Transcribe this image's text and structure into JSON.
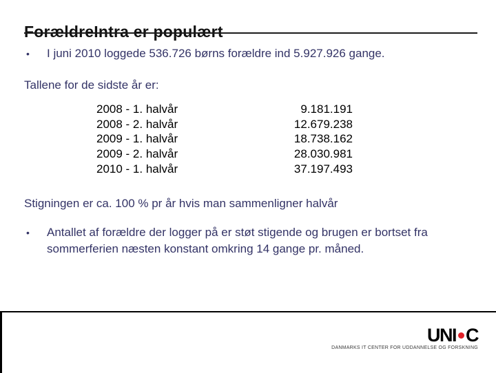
{
  "slide": {
    "title": "ForældreIntra er populært",
    "bullets": [
      {
        "marker": "•",
        "text": "I juni 2010 loggede 536.726 børns forældre ind 5.927.926 gange."
      },
      {
        "marker": "•",
        "text": "Antallet af forældre der logger på er støt stigende og brugen er bortset fra sommerferien næsten konstant omkring 14 gange pr. måned."
      }
    ],
    "intro_line": "Tallene for de sidste år er:",
    "stats": {
      "rows": [
        {
          "label": "2008 - 1. halvår",
          "value": "9.181.191"
        },
        {
          "label": "2008 - 2. halvår",
          "value": "12.679.238"
        },
        {
          "label": "2009 - 1. halvår",
          "value": "18.738.162"
        },
        {
          "label": "2009 - 2. halvår",
          "value": "28.030.981"
        },
        {
          "label": "2010 - 1. halvår",
          "value": "37.197.493"
        }
      ]
    },
    "growth_line": "Stigningen er ca. 100 % pr år hvis man sammenligner halvår"
  },
  "footer": {
    "logo": {
      "uni": "UNI",
      "c": "C"
    },
    "tagline": "DANMARKS IT CENTER FOR UDDANNELSE OG FORSKNING"
  },
  "colors": {
    "body_text": "#333366",
    "title_text": "#111111",
    "table_text": "#000000",
    "logo_dot_red": "#e02128",
    "rule_black": "#1a1a1a"
  }
}
